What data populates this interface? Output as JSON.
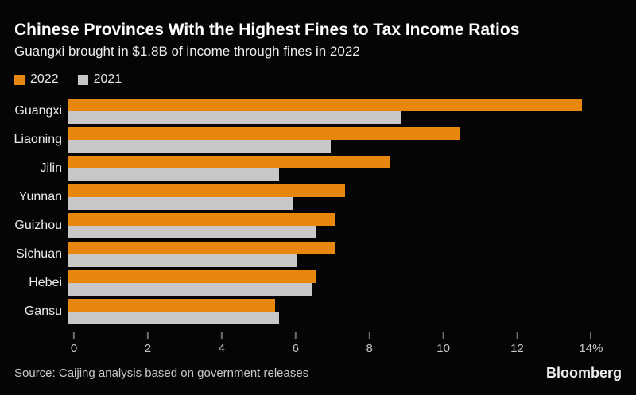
{
  "header": {
    "title": "Chinese Provinces With the Highest Fines to Tax Income Ratios",
    "subtitle": "Guangxi brought in $1.8B of income through fines in 2022"
  },
  "legend": [
    {
      "label": "2022",
      "color": "#E8860E"
    },
    {
      "label": "2021",
      "color": "#C8C8C8"
    }
  ],
  "chart_data": {
    "type": "bar",
    "orientation": "horizontal",
    "title": "Chinese Provinces With the Highest Fines to Tax Income Ratios",
    "subtitle": "Guangxi brought in $1.8B of income through fines in 2022",
    "unit": "%",
    "categories": [
      "Guangxi",
      "Liaoning",
      "Jilin",
      "Yunnan",
      "Guizhou",
      "Sichuan",
      "Hebei",
      "Gansu"
    ],
    "series": [
      {
        "name": "2022",
        "color": "#E8860E",
        "values": [
          13.9,
          10.6,
          8.7,
          7.5,
          7.2,
          7.2,
          6.7,
          5.6
        ]
      },
      {
        "name": "2021",
        "color": "#C8C8C8",
        "values": [
          9.0,
          7.1,
          5.7,
          6.1,
          6.7,
          6.2,
          6.6,
          5.7
        ]
      }
    ],
    "xlim": [
      0,
      14.4
    ],
    "x_ticks": [
      0,
      2,
      4,
      6,
      8,
      10,
      12,
      14
    ],
    "x_tick_labels": [
      "0",
      "2",
      "4",
      "6",
      "8",
      "10",
      "12",
      "14%"
    ],
    "grid": false,
    "legend_position": "top-left"
  },
  "footer": {
    "source": "Source: Caijing analysis based on government releases",
    "brand": "Bloomberg"
  }
}
